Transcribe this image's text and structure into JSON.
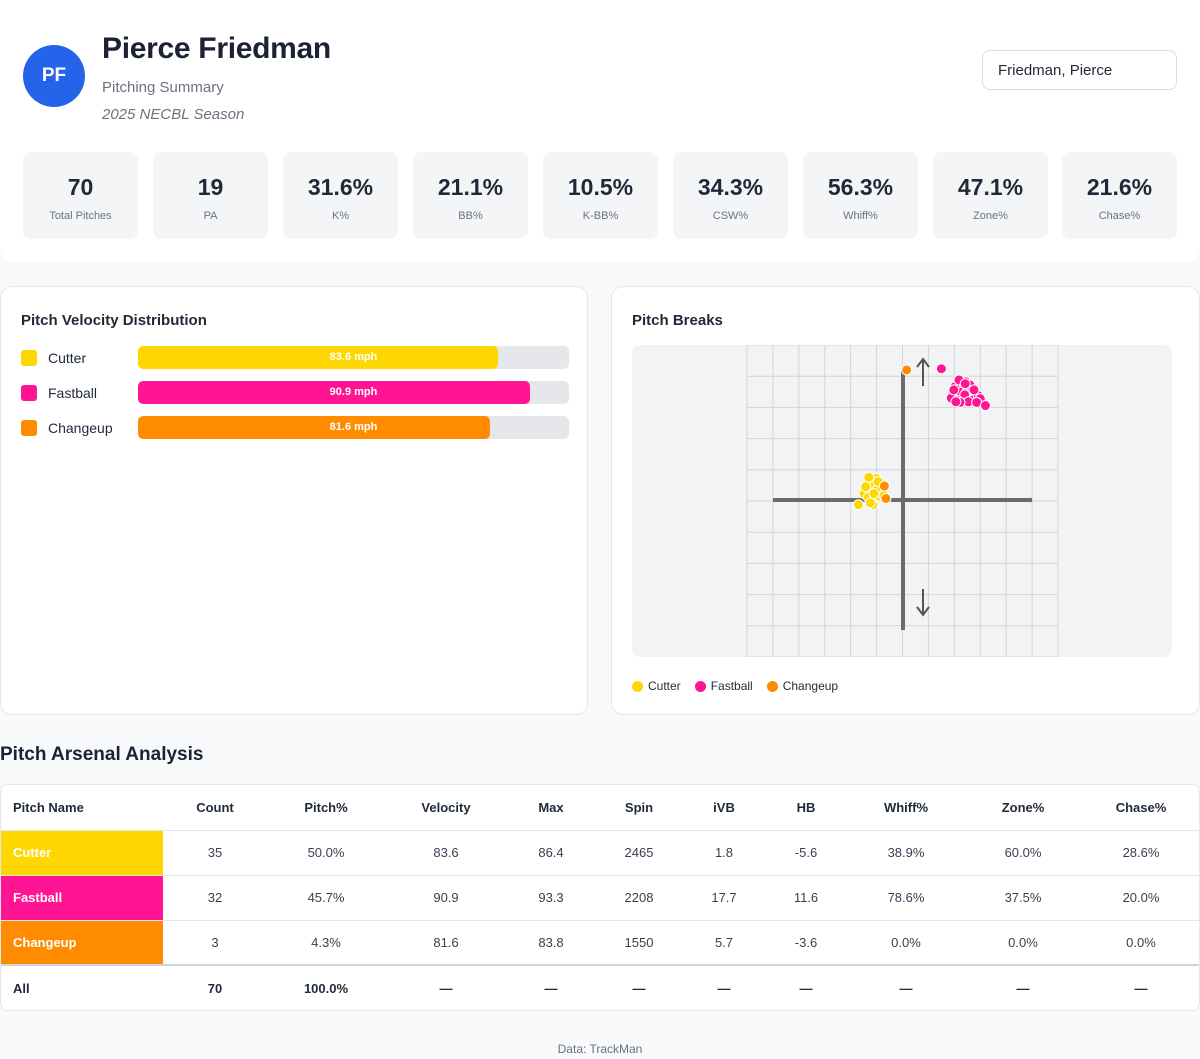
{
  "player": {
    "initials": "PF",
    "name": "Pierce Friedman",
    "subtitle": "Pitching Summary",
    "season": "2025 NECBL Season",
    "selector_value": "Friedman, Pierce"
  },
  "stats": [
    {
      "value": "70",
      "label": "Total Pitches"
    },
    {
      "value": "19",
      "label": "PA"
    },
    {
      "value": "31.6%",
      "label": "K%"
    },
    {
      "value": "21.1%",
      "label": "BB%"
    },
    {
      "value": "10.5%",
      "label": "K-BB%"
    },
    {
      "value": "34.3%",
      "label": "CSW%"
    },
    {
      "value": "56.3%",
      "label": "Whiff%"
    },
    {
      "value": "47.1%",
      "label": "Zone%"
    },
    {
      "value": "21.6%",
      "label": "Chase%"
    }
  ],
  "velocity": {
    "title": "Pitch Velocity Distribution",
    "max_scale": 100,
    "items": [
      {
        "name": "Cutter",
        "value": 83.6,
        "label": "83.6 mph",
        "color": "#FFD700"
      },
      {
        "name": "Fastball",
        "value": 90.9,
        "label": "90.9 mph",
        "color": "#FF1493"
      },
      {
        "name": "Changeup",
        "value": 81.6,
        "label": "81.6 mph",
        "color": "#FF8C00"
      }
    ]
  },
  "breaks": {
    "title": "Pitch Breaks",
    "legend": [
      {
        "name": "Cutter",
        "color": "#FFD700"
      },
      {
        "name": "Fastball",
        "color": "#FF1493"
      },
      {
        "name": "Changeup",
        "color": "#FF8C00"
      }
    ]
  },
  "chart_data": {
    "type": "scatter",
    "title": "Pitch Breaks",
    "xlabel": "",
    "ylabel": "",
    "xlim": [
      -30,
      30
    ],
    "ylim": [
      -25,
      25
    ],
    "grid": true,
    "legend_position": "bottom-left",
    "series": [
      {
        "name": "Cutter",
        "color": "#FFD700",
        "points": [
          [
            -5.6,
            1.8
          ],
          [
            -6.1,
            2.4
          ],
          [
            -4.9,
            1.3
          ],
          [
            -5.2,
            2.9
          ],
          [
            -6.4,
            1.1
          ],
          [
            -5.8,
            0.7
          ],
          [
            -4.6,
            2.2
          ],
          [
            -5.5,
            3.3
          ],
          [
            -6.7,
            2.0
          ],
          [
            -5.0,
            0.4
          ],
          [
            -4.4,
            1.6
          ],
          [
            -6.0,
            3.0
          ],
          [
            -5.3,
            1.0
          ],
          [
            -6.9,
            1.5
          ],
          [
            -4.8,
            2.7
          ],
          [
            -5.7,
            -0.2
          ],
          [
            -4.2,
            1.9
          ],
          [
            -6.3,
            2.6
          ],
          [
            -5.1,
            3.6
          ],
          [
            -7.4,
            1.2
          ],
          [
            -4.5,
            0.8
          ],
          [
            -5.9,
            1.4
          ],
          [
            -3.8,
            2.1
          ],
          [
            -6.6,
            0.6
          ],
          [
            -5.4,
            2.5
          ],
          [
            -8.5,
            -0.6
          ],
          [
            -5.7,
            -0.6
          ],
          [
            -6.2,
            -0.3
          ],
          [
            -4.0,
            2.8
          ],
          [
            -5.0,
            1.7
          ],
          [
            -7.1,
            2.3
          ],
          [
            -3.6,
            0.9
          ],
          [
            -6.5,
            3.8
          ],
          [
            -4.7,
            3.1
          ],
          [
            -5.5,
            1.2
          ]
        ]
      },
      {
        "name": "Fastball",
        "color": "#FF1493",
        "points": [
          [
            11.6,
            17.7
          ],
          [
            12.4,
            18.5
          ],
          [
            10.8,
            16.9
          ],
          [
            13.1,
            17.2
          ],
          [
            11.0,
            18.9
          ],
          [
            12.9,
            16.5
          ],
          [
            10.4,
            17.6
          ],
          [
            14.0,
            17.0
          ],
          [
            11.8,
            16.3
          ],
          [
            10.1,
            18.3
          ],
          [
            12.2,
            19.1
          ],
          [
            13.6,
            16.2
          ],
          [
            9.7,
            17.1
          ],
          [
            14.6,
            16.9
          ],
          [
            11.3,
            17.4
          ],
          [
            10.9,
            19.4
          ],
          [
            12.6,
            17.9
          ],
          [
            9.4,
            16.5
          ],
          [
            15.0,
            16.4
          ],
          [
            13.0,
            18.6
          ],
          [
            11.5,
            16.0
          ],
          [
            12.0,
            17.0
          ],
          [
            10.6,
            16.1
          ],
          [
            13.8,
            17.8
          ],
          [
            9.9,
            17.8
          ],
          [
            12.7,
            15.9
          ],
          [
            11.1,
            15.8
          ],
          [
            14.3,
            15.8
          ],
          [
            10.3,
            15.9
          ],
          [
            16.0,
            15.3
          ],
          [
            7.5,
            21.2
          ],
          [
            12.1,
            18.8
          ]
        ]
      },
      {
        "name": "Changeup",
        "color": "#FF8C00",
        "points": [
          [
            0.8,
            21.0
          ],
          [
            -3.5,
            2.4
          ],
          [
            -3.2,
            0.4
          ]
        ]
      }
    ]
  },
  "arsenal": {
    "title": "Pitch Arsenal Analysis",
    "columns": [
      "Pitch Name",
      "Count",
      "Pitch%",
      "Velocity",
      "Max",
      "Spin",
      "iVB",
      "HB",
      "Whiff%",
      "Zone%",
      "Chase%"
    ],
    "rows": [
      {
        "color": "#FFD700",
        "cells": [
          "Cutter",
          "35",
          "50.0%",
          "83.6",
          "86.4",
          "2465",
          "1.8",
          "-5.6",
          "38.9%",
          "60.0%",
          "28.6%"
        ]
      },
      {
        "color": "#FF1493",
        "cells": [
          "Fastball",
          "32",
          "45.7%",
          "90.9",
          "93.3",
          "2208",
          "17.7",
          "11.6",
          "78.6%",
          "37.5%",
          "20.0%"
        ]
      },
      {
        "color": "#FF8C00",
        "cells": [
          "Changeup",
          "3",
          "4.3%",
          "81.6",
          "83.8",
          "1550",
          "5.7",
          "-3.6",
          "0.0%",
          "0.0%",
          "0.0%"
        ]
      }
    ],
    "total": [
      "All",
      "70",
      "100.0%",
      "—",
      "—",
      "—",
      "—",
      "—",
      "—",
      "—",
      "—"
    ]
  },
  "footer": "Data: TrackMan"
}
